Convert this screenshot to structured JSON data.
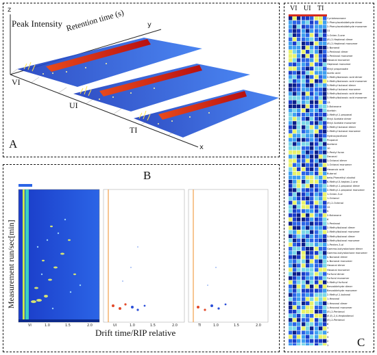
{
  "panel_a": {
    "label": "A",
    "z_axis": "z",
    "y_axis": "y",
    "x_axis": "x",
    "z_title": "Peak Intensity",
    "y_title": "Retention time (s)",
    "samples": [
      "VI",
      "UI",
      "TI"
    ]
  },
  "panel_b": {
    "label": "B",
    "y_title": "Measurement run/sec[min]",
    "x_title": "Drift time/RIP relative",
    "subpanels": [
      "VI",
      "UI",
      "TI"
    ],
    "x_ticks": [
      "1.0",
      "1.5",
      "2.0"
    ]
  },
  "panel_c": {
    "label": "C",
    "columns": [
      "VI",
      "UI",
      "TI"
    ],
    "rows": [
      "Cyclohexanone",
      "2-Phenylacetaldehyde dimer",
      "2-Phenylacetaldehyde monomer",
      "11",
      "1-Octen-3-one",
      "(E)-2-Heptenal dimer",
      "(E)-2-Heptenal monomer",
      "2-Nonanol",
      "1-Pentanol dimer",
      "1-Pentanol monomer",
      "Hexanal monomer",
      "Heptanal monomer",
      "Ethyl propanoate",
      "Acetic acid",
      "2-Methylbutanoic acid dimer",
      "2-Methylbutanoic acid monomer",
      "3-Methyl butanal dimer",
      "3-Methyl butanal monomer",
      "3-Methylbutanoic acid dimer",
      "3-Methylbutanoic acid monomer",
      "13",
      "2-Butanone",
      "Acetoin",
      "2-Methyl-1-propanal",
      "Ethyl Acetate dimer",
      "Ethyl Acetate monomer",
      "2-Methyl butanal dimer",
      "2-Methyl butanal monomer",
      "Hydroxyacetone",
      "Propanal",
      "Acetone",
      "10",
      "2-Pentyl furan",
      "Decanal",
      "1-Octanal dimer",
      "1-Octanal monomer",
      "Hexanoic acid",
      "Butanal",
      "beta-Phenethyl alcohol",
      "6-Methyl-5-hepten-2-one",
      "2-Methyl-1-propanol dimer",
      "2-Methyl-1-propanol monomer",
      "1-Octen-3-ol",
      "1-Octanol",
      "(E)-2-Octenal",
      "12",
      "5",
      "2-Butanone",
      "6",
      "1-Pentanol",
      "2-Methylbutanal dimer",
      "2-Methylbutanal monomer",
      "3-Methylbutanal dimer",
      "3-Methylbutanal monomer",
      "1-Penten-3-ol",
      "Gamma-butyrolactone dimer",
      "Gamma-butyrolactone monomer",
      "n-Nonanal dimer",
      "n-Nonanal monomer",
      "Hexanal dimer",
      "Hexanal monomer",
      "Furfural dimer",
      "Furfural monomer",
      "5-Methyl furfural",
      "Benzaldehyde dimer",
      "Benzaldehyde monomer",
      "2-Methyl-1-butanol",
      "1-Hexanol",
      "1-Hexanol dimer",
      "1-Hexanol monomer",
      "(E)-2-Pentenal",
      "(E,E)-2,4-Heptadienal",
      "(E)-2-Pentenal",
      "8",
      "7",
      "4",
      "3",
      "2",
      "1"
    ]
  },
  "colors": {
    "heatmap_bg": "#1f4fd6",
    "ridge": "#d62b1e",
    "highlight": "#f2e21a"
  }
}
